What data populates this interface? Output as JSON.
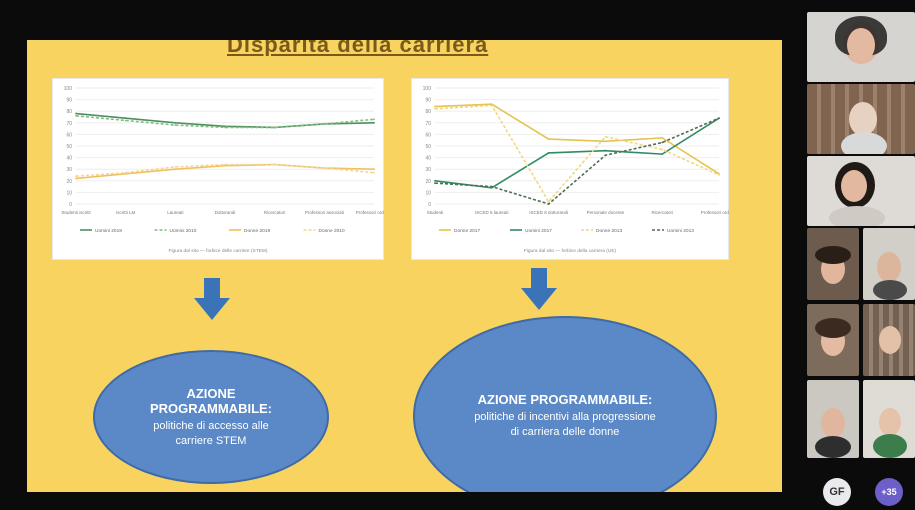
{
  "slide": {
    "title": "Disparità della carriera",
    "ellipse_left": {
      "title": "AZIONE PROGRAMMABILE:",
      "body": "politiche di accesso alle carriere STEM"
    },
    "ellipse_right": {
      "title": "AZIONE PROGRAMMABILE:",
      "body": "politiche di incentivi alla progressione di carriera delle donne"
    },
    "left_chart_caption": "Figura dal sito — forbice delle carriere (STEM)",
    "right_chart_caption": "Figura dal sito — forbice della carriera (UE)"
  },
  "chart_data": [
    {
      "type": "line",
      "ylim": [
        0,
        100
      ],
      "yticks": [
        0,
        10,
        20,
        30,
        40,
        50,
        60,
        70,
        80,
        90,
        100
      ],
      "categories": [
        "Studenti iscritti",
        "Iscritti LM",
        "Laureati",
        "Dottorandi",
        "Ricercatori",
        "Professori associati",
        "Professori ordinari"
      ],
      "series": [
        {
          "name": "Uomini 2019",
          "color": "#4e8f5f",
          "dash": false,
          "values": [
            78,
            74,
            70,
            67,
            66,
            69,
            70
          ]
        },
        {
          "name": "Uomini 2010",
          "color": "#7fbf7f",
          "dash": true,
          "values": [
            76,
            72,
            68,
            66,
            66,
            69,
            73
          ]
        },
        {
          "name": "Donne 2019",
          "color": "#f0c060",
          "dash": false,
          "values": [
            22,
            26,
            30,
            33,
            34,
            31,
            30
          ]
        },
        {
          "name": "Donne 2010",
          "color": "#f4d694",
          "dash": true,
          "values": [
            24,
            27,
            32,
            34,
            34,
            31,
            27
          ]
        }
      ],
      "legend_position": "bottom"
    },
    {
      "type": "line",
      "ylim": [
        0,
        100
      ],
      "yticks": [
        0,
        10,
        20,
        30,
        40,
        50,
        60,
        70,
        80,
        90,
        100
      ],
      "categories": [
        "Studenti",
        "ISCED 6 laureati",
        "ISCED 8 dottorandi",
        "Personale docente",
        "Ricercatori",
        "Professori ordinari"
      ],
      "series": [
        {
          "name": "Donne 2017",
          "color": "#e6c24e",
          "dash": false,
          "values": [
            84,
            86,
            56,
            54,
            57,
            26
          ]
        },
        {
          "name": "Uomini 2017",
          "color": "#2f8c62",
          "dash": false,
          "values": [
            20,
            14,
            44,
            46,
            43,
            74
          ]
        },
        {
          "name": "Donne 2013",
          "color": "#f0d783",
          "dash": true,
          "values": [
            82,
            85,
            2,
            58,
            47,
            25
          ]
        },
        {
          "name": "Uomini 2013",
          "color": "#4f6d53",
          "dash": true,
          "values": [
            18,
            15,
            0,
            42,
            53,
            74
          ]
        }
      ],
      "legend_position": "bottom"
    }
  ],
  "gallery": {
    "tiles": [
      {
        "name": "participant-1",
        "bg": "#cfd2d6"
      },
      {
        "name": "participant-2",
        "bg": "#8f6f5a"
      },
      {
        "name": "participant-3",
        "bg": "#d8d6d2"
      },
      {
        "name": "participant-4",
        "bg": "#6c5a4a"
      },
      {
        "name": "participant-5",
        "bg": "#c9c7c0"
      },
      {
        "name": "participant-6",
        "bg": "#7d6a5b"
      },
      {
        "name": "participant-7",
        "bg": "#d0cdc6"
      },
      {
        "name": "participant-8",
        "bg": "#2f2f2f"
      },
      {
        "name": "participant-9",
        "bg": "#cfd3d3"
      },
      {
        "name": "participant-10",
        "bg": "#e0ddd7"
      }
    ],
    "avatar_initials": "GF",
    "more_count": "+35"
  }
}
